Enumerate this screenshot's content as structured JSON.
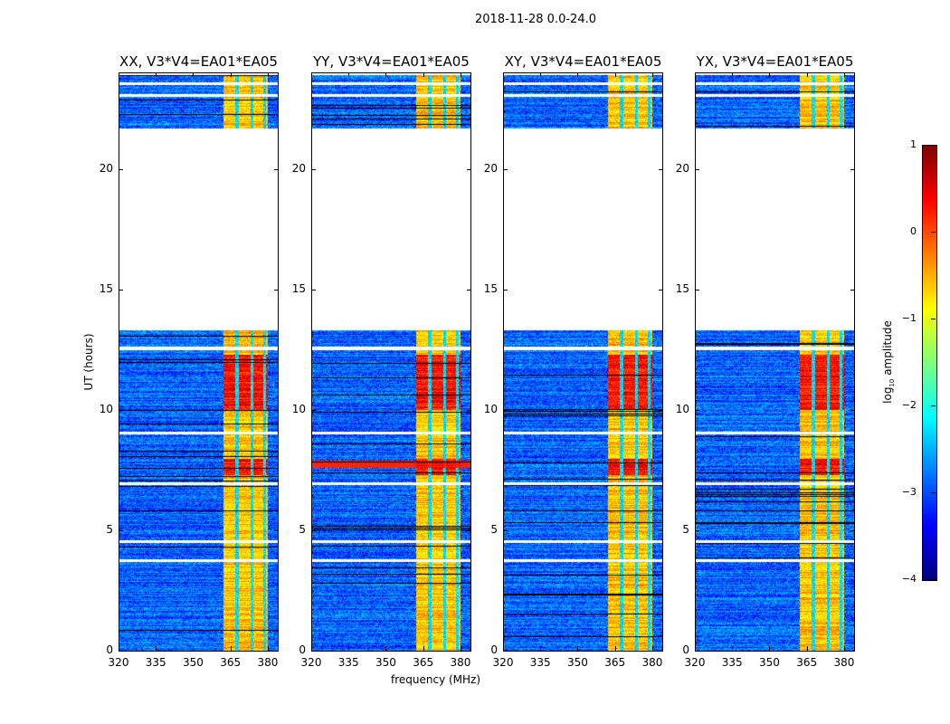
{
  "chart_data": {
    "type": "heatmap",
    "title": "2018-11-28 0.0-24.0",
    "xlabel": "frequency (MHz)",
    "ylabel": "UT (hours)",
    "xlim": [
      320,
      384.4
    ],
    "ylim": [
      0,
      24
    ],
    "xticks": [
      "320",
      "335",
      "350",
      "365",
      "380"
    ],
    "xtick_values": [
      320,
      335,
      350,
      365,
      380
    ],
    "yticks": [
      "0",
      "5",
      "10",
      "15",
      "20"
    ],
    "ytick_values": [
      0,
      5,
      10,
      15,
      20
    ],
    "panels": [
      {
        "title": "XX, V3*V4=EA01*EA05",
        "show_ylabel": true
      },
      {
        "title": "YY, V3*V4=EA01*EA05"
      },
      {
        "title": "XY, V3*V4=EA01*EA05"
      },
      {
        "title": "YX, V3*V4=EA01*EA05"
      }
    ],
    "data_time_ranges_hours": [
      [
        0,
        3.7
      ],
      [
        3.8,
        4.5
      ],
      [
        4.6,
        6.9
      ],
      [
        7.0,
        9.0
      ],
      [
        9.1,
        12.5
      ],
      [
        12.65,
        13.3
      ],
      [
        21.7,
        23.0
      ],
      [
        23.1,
        23.5
      ],
      [
        23.6,
        23.9
      ]
    ],
    "background_level_log10": -2.9,
    "rfi_band_MHz": [
      362,
      380
    ],
    "rfi_level_log10": -0.6,
    "rfi_gaps_MHz": [
      367.5,
      373.5,
      378.5
    ],
    "strong_rfi_hours": [
      [
        7.3,
        8.0
      ],
      [
        10.0,
        12.3
      ]
    ],
    "colorbar": {
      "label": "log10 amplitude",
      "label_base": "log",
      "label_sub": "10",
      "label_rest": " amplitude",
      "range": [
        -4,
        1
      ],
      "ticks": [
        "1",
        "0",
        "−1",
        "−2",
        "−3",
        "−4"
      ],
      "tick_values": [
        1,
        0,
        -1,
        -2,
        -3,
        -4
      ],
      "colormap": "jet"
    }
  }
}
